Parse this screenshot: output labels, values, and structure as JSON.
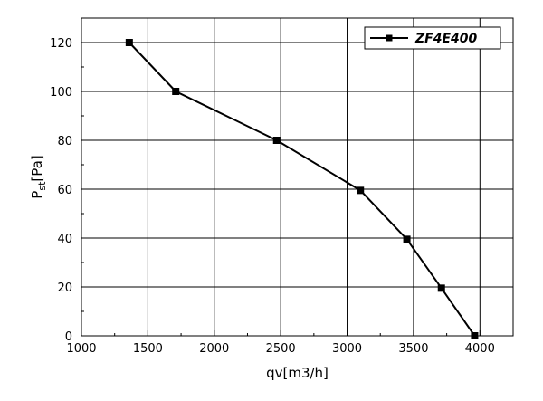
{
  "chart_data": {
    "type": "line",
    "title": "",
    "xlabel": "qv[m3/h]",
    "ylabel_main": "P",
    "ylabel_sub": "st",
    "ylabel_rest": "[Pa]",
    "xlim": [
      1000,
      4250
    ],
    "ylim": [
      0,
      130
    ],
    "x_ticks": [
      1000,
      1500,
      2000,
      2500,
      3000,
      3500,
      4000
    ],
    "x_tick_labels": [
      "1000",
      "1500",
      "2000",
      "2500",
      "3000",
      "3500",
      "4000"
    ],
    "y_ticks": [
      0,
      20,
      40,
      60,
      80,
      100,
      120
    ],
    "y_tick_labels": [
      "0",
      "20",
      "40",
      "60",
      "80",
      "100",
      "120"
    ],
    "grid": true,
    "legend_position": "top-right",
    "series": [
      {
        "name": "ZF4E400",
        "color": "#000000",
        "marker": "square",
        "x": [
          1360,
          1710,
          2470,
          3100,
          3450,
          3710,
          3960
        ],
        "y": [
          120,
          100,
          80,
          59.5,
          39.5,
          19.5,
          0
        ]
      }
    ]
  }
}
